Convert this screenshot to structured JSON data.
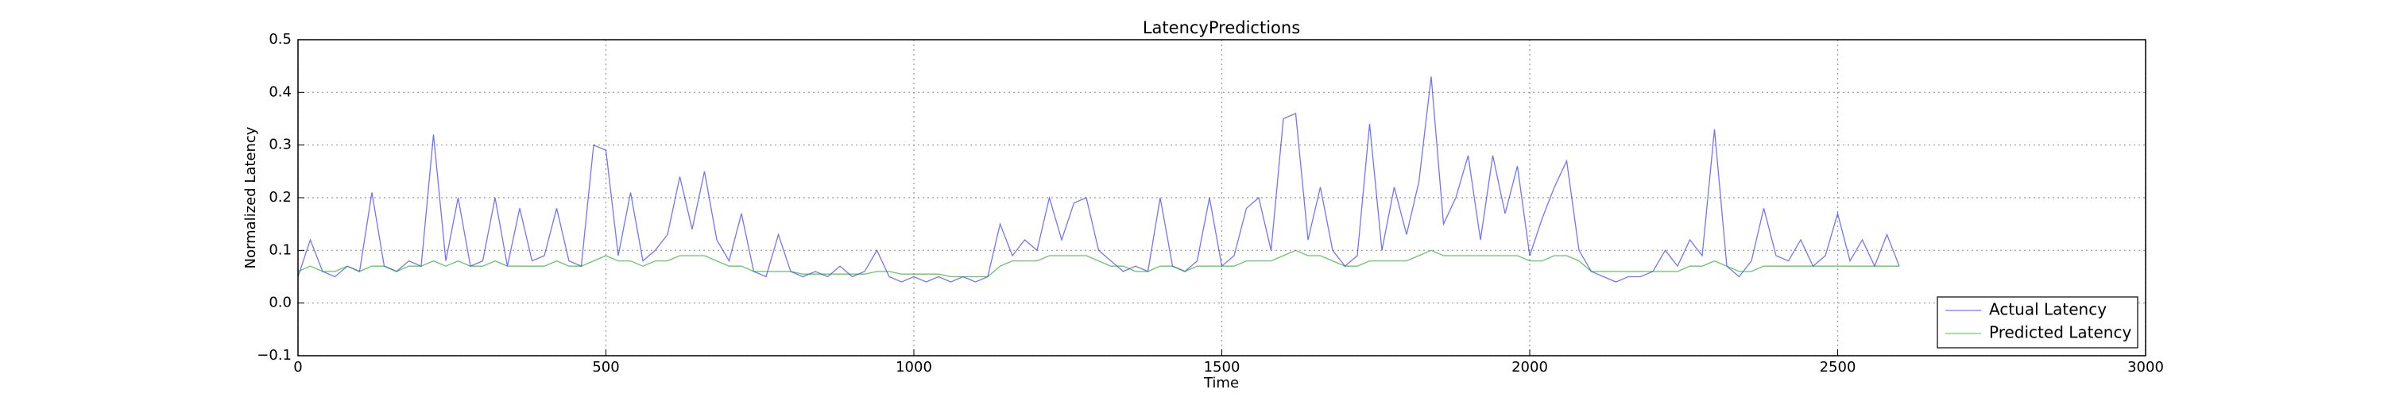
{
  "chart_data": {
    "type": "line",
    "title": "LatencyPredictions",
    "x_label": "Time",
    "y_label": "Normalized Latency",
    "x": [
      0,
      20,
      40,
      60,
      80,
      100,
      120,
      140,
      160,
      180,
      200,
      220,
      240,
      260,
      280,
      300,
      320,
      340,
      360,
      380,
      400,
      420,
      440,
      460,
      480,
      500,
      520,
      540,
      560,
      580,
      600,
      620,
      640,
      660,
      680,
      700,
      720,
      740,
      760,
      780,
      800,
      820,
      840,
      860,
      880,
      900,
      920,
      940,
      960,
      980,
      1000,
      1020,
      1040,
      1060,
      1080,
      1100,
      1120,
      1140,
      1160,
      1180,
      1200,
      1220,
      1240,
      1260,
      1280,
      1300,
      1320,
      1340,
      1360,
      1380,
      1400,
      1420,
      1440,
      1460,
      1480,
      1500,
      1520,
      1540,
      1560,
      1580,
      1600,
      1620,
      1640,
      1660,
      1680,
      1700,
      1720,
      1740,
      1760,
      1780,
      1800,
      1820,
      1840,
      1860,
      1880,
      1900,
      1920,
      1940,
      1960,
      1980,
      2000,
      2020,
      2040,
      2060,
      2080,
      2100,
      2120,
      2140,
      2160,
      2180,
      2200,
      2220,
      2240,
      2260,
      2280,
      2300,
      2320,
      2340,
      2360,
      2380,
      2400,
      2420,
      2440,
      2460,
      2480,
      2500,
      2520,
      2540,
      2560,
      2580,
      2600
    ],
    "series": [
      {
        "name": "Actual Latency",
        "color": "#0000ff",
        "values": [
          0.05,
          0.12,
          0.06,
          0.05,
          0.07,
          0.06,
          0.21,
          0.07,
          0.06,
          0.08,
          0.07,
          0.32,
          0.08,
          0.2,
          0.07,
          0.08,
          0.2,
          0.07,
          0.18,
          0.08,
          0.09,
          0.18,
          0.08,
          0.07,
          0.3,
          0.29,
          0.09,
          0.21,
          0.08,
          0.1,
          0.13,
          0.24,
          0.14,
          0.25,
          0.12,
          0.08,
          0.17,
          0.06,
          0.05,
          0.13,
          0.06,
          0.05,
          0.06,
          0.05,
          0.07,
          0.05,
          0.06,
          0.1,
          0.05,
          0.04,
          0.05,
          0.04,
          0.05,
          0.04,
          0.05,
          0.04,
          0.05,
          0.15,
          0.09,
          0.12,
          0.1,
          0.2,
          0.12,
          0.19,
          0.2,
          0.1,
          0.08,
          0.06,
          0.07,
          0.06,
          0.2,
          0.07,
          0.06,
          0.08,
          0.2,
          0.07,
          0.09,
          0.18,
          0.2,
          0.1,
          0.35,
          0.36,
          0.12,
          0.22,
          0.1,
          0.07,
          0.09,
          0.34,
          0.1,
          0.22,
          0.13,
          0.23,
          0.43,
          0.15,
          0.2,
          0.28,
          0.12,
          0.28,
          0.17,
          0.26,
          0.09,
          0.16,
          0.22,
          0.27,
          0.1,
          0.06,
          0.05,
          0.04,
          0.05,
          0.05,
          0.06,
          0.1,
          0.07,
          0.12,
          0.09,
          0.33,
          0.07,
          0.05,
          0.08,
          0.18,
          0.09,
          0.08,
          0.12,
          0.07,
          0.09,
          0.17,
          0.08,
          0.12,
          0.07,
          0.13,
          0.07
        ]
      },
      {
        "name": "Predicted Latency",
        "color": "#00a000",
        "values": [
          0.06,
          0.07,
          0.06,
          0.06,
          0.07,
          0.06,
          0.07,
          0.07,
          0.06,
          0.07,
          0.07,
          0.08,
          0.07,
          0.08,
          0.07,
          0.07,
          0.08,
          0.07,
          0.07,
          0.07,
          0.07,
          0.08,
          0.07,
          0.07,
          0.08,
          0.09,
          0.08,
          0.08,
          0.07,
          0.08,
          0.08,
          0.09,
          0.09,
          0.09,
          0.08,
          0.07,
          0.07,
          0.06,
          0.06,
          0.06,
          0.06,
          0.055,
          0.055,
          0.055,
          0.055,
          0.055,
          0.055,
          0.06,
          0.06,
          0.055,
          0.055,
          0.055,
          0.055,
          0.05,
          0.05,
          0.05,
          0.05,
          0.07,
          0.08,
          0.08,
          0.08,
          0.09,
          0.09,
          0.09,
          0.09,
          0.08,
          0.07,
          0.07,
          0.06,
          0.06,
          0.07,
          0.07,
          0.06,
          0.07,
          0.07,
          0.07,
          0.07,
          0.08,
          0.08,
          0.08,
          0.09,
          0.1,
          0.09,
          0.09,
          0.08,
          0.07,
          0.07,
          0.08,
          0.08,
          0.08,
          0.08,
          0.09,
          0.1,
          0.09,
          0.09,
          0.09,
          0.09,
          0.09,
          0.09,
          0.09,
          0.08,
          0.08,
          0.09,
          0.09,
          0.08,
          0.06,
          0.06,
          0.06,
          0.06,
          0.06,
          0.06,
          0.06,
          0.06,
          0.07,
          0.07,
          0.08,
          0.07,
          0.06,
          0.06,
          0.07,
          0.07,
          0.07,
          0.07,
          0.07,
          0.07,
          0.07,
          0.07,
          0.07,
          0.07,
          0.07,
          0.07
        ]
      }
    ],
    "xlim": [
      0,
      3000
    ],
    "xticks": [
      0,
      500,
      1000,
      1500,
      2000,
      2500,
      3000
    ],
    "ylim": [
      -0.1,
      0.5
    ],
    "yticks": [
      {
        "value": -0.1,
        "label": "−0.1"
      },
      {
        "value": 0,
        "label": "0.0"
      },
      0.1,
      0.2,
      0.3,
      0.4,
      0.5
    ],
    "grid": true,
    "legend": "lower right"
  }
}
